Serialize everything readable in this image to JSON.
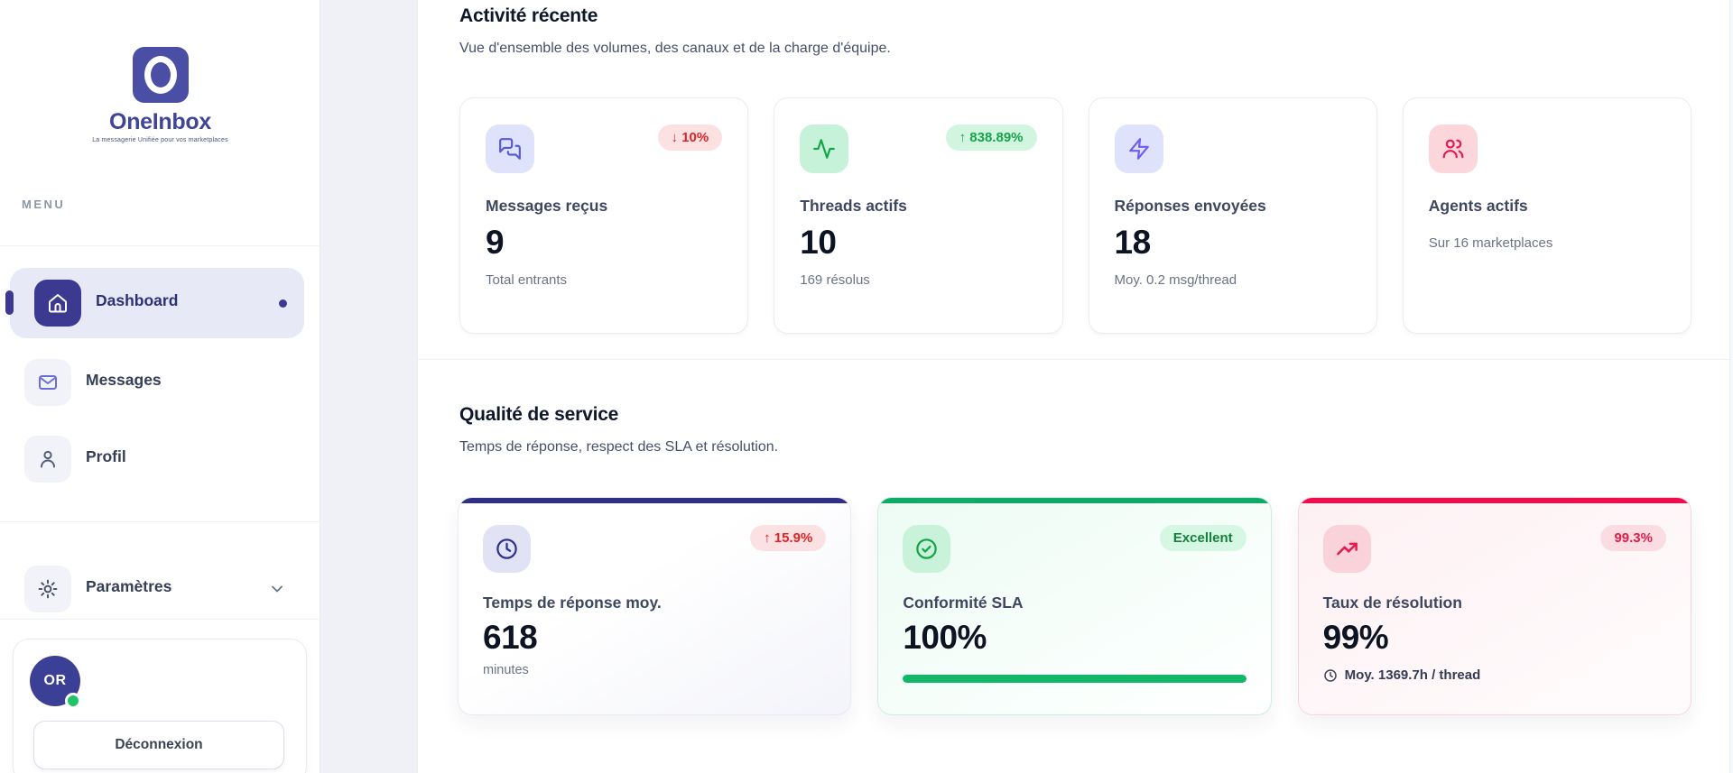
{
  "sidebar": {
    "brand": {
      "name": "OneInbox",
      "tagline": "La messagerie Unifiée pour vos marketplaces"
    },
    "menu_label": "MENU",
    "items": [
      {
        "label": "Dashboard",
        "icon": "home-icon",
        "active": true
      },
      {
        "label": "Messages",
        "icon": "mail-icon",
        "active": false
      },
      {
        "label": "Profil",
        "icon": "user-icon",
        "active": false
      }
    ],
    "settings": {
      "label": "Paramètres",
      "icon": "gear-icon",
      "expandable": true
    },
    "user": {
      "initials": "OR",
      "status": "online",
      "logout_label": "Déconnexion"
    }
  },
  "activity": {
    "title": "Activité récente",
    "subtitle": "Vue d'ensemble des volumes, des canaux et de la charge d'équipe.",
    "cards": [
      {
        "label": "Messages reçus",
        "value": "9",
        "sub": "Total entrants",
        "badge": "↓ 10%",
        "badge_color": "red",
        "icon": "chat-bubbles-icon"
      },
      {
        "label": "Threads actifs",
        "value": "10",
        "sub": "169 résolus",
        "badge": "↑ 838.89%",
        "badge_color": "green",
        "icon": "activity-icon"
      },
      {
        "label": "Réponses envoyées",
        "value": "18",
        "sub": "Moy. 0.2 msg/thread",
        "icon": "zap-icon"
      },
      {
        "label": "Agents actifs",
        "sub": "Sur 16 marketplaces",
        "icon": "users-icon"
      }
    ]
  },
  "quality": {
    "title": "Qualité de service",
    "subtitle": "Temps de réponse, respect des SLA et résolution.",
    "cards": [
      {
        "label": "Temps de réponse moy.",
        "value": "618",
        "footer": "minutes",
        "badge": "↑ 15.9%",
        "badge_color": "red",
        "accent": "#312f85",
        "icon": "clock-icon"
      },
      {
        "label": "Conformité SLA",
        "value": "100%",
        "badge": "Excellent",
        "badge_color": "green",
        "accent": "#0fa968",
        "progress_percent": 100,
        "icon": "check-circle-icon"
      },
      {
        "label": "Taux de résolution",
        "value": "99%",
        "badge": "99.3%",
        "badge_color": "rose",
        "accent": "#ee0e4f",
        "footer": "Moy. 1369.7h / thread",
        "icon": "trending-up-icon"
      }
    ]
  },
  "colors": {
    "primary_indigo": "#3c3a90",
    "accent_green": "#12b76a",
    "accent_rose": "#ee0e4f",
    "badge_red_text": "#e02424",
    "badge_green_text": "#17a34a",
    "online_dot": "#1fc469"
  }
}
